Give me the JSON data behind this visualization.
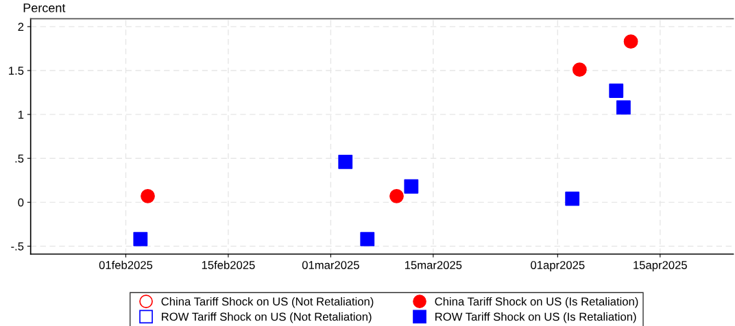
{
  "chart_data": {
    "type": "scatter",
    "ylabel": "Percent",
    "xlim": [
      "2025-01-19",
      "2025-04-25"
    ],
    "xticks": [
      {
        "value": "2025-02-01",
        "label": "01feb2025"
      },
      {
        "value": "2025-02-15",
        "label": "15feb2025"
      },
      {
        "value": "2025-03-01",
        "label": "01mar2025"
      },
      {
        "value": "2025-03-15",
        "label": "15mar2025"
      },
      {
        "value": "2025-04-01",
        "label": "01apr2025"
      },
      {
        "value": "2025-04-15",
        "label": "15apr2025"
      }
    ],
    "ylim": [
      -0.59,
      2.09
    ],
    "yticks": [
      {
        "value": -0.5,
        "label": "-.5"
      },
      0,
      {
        "value": 0.5,
        "label": ".5"
      },
      1,
      1.5,
      2
    ],
    "grid": true,
    "legend": "bottom",
    "series": [
      {
        "name": "China Tariff Shock on US (Not Retaliation)",
        "color": "#ff0000",
        "marker": "circle"
      },
      {
        "name": "ROW Tariff Shock on US (Not Retaliation)",
        "color": "#0000ff",
        "marker": "square"
      },
      {
        "name": "China Tariff Shock on US (Is Retaliation)",
        "color": "#ff0000",
        "marker": "circle",
        "x": [
          "2025-02-04",
          "2025-03-10",
          "2025-04-04",
          "2025-04-11"
        ],
        "values": [
          0.07,
          0.07,
          1.51,
          1.83
        ]
      },
      {
        "name": "ROW Tariff Shock on US (Is Retaliation)",
        "color": "#0000ff",
        "marker": "square",
        "x": [
          "2025-02-03",
          "2025-03-03",
          "2025-03-06",
          "2025-03-12",
          "2025-04-03",
          "2025-04-09",
          "2025-04-10"
        ],
        "values": [
          -0.42,
          0.46,
          -0.42,
          0.18,
          0.04,
          1.27,
          1.08
        ]
      }
    ]
  }
}
